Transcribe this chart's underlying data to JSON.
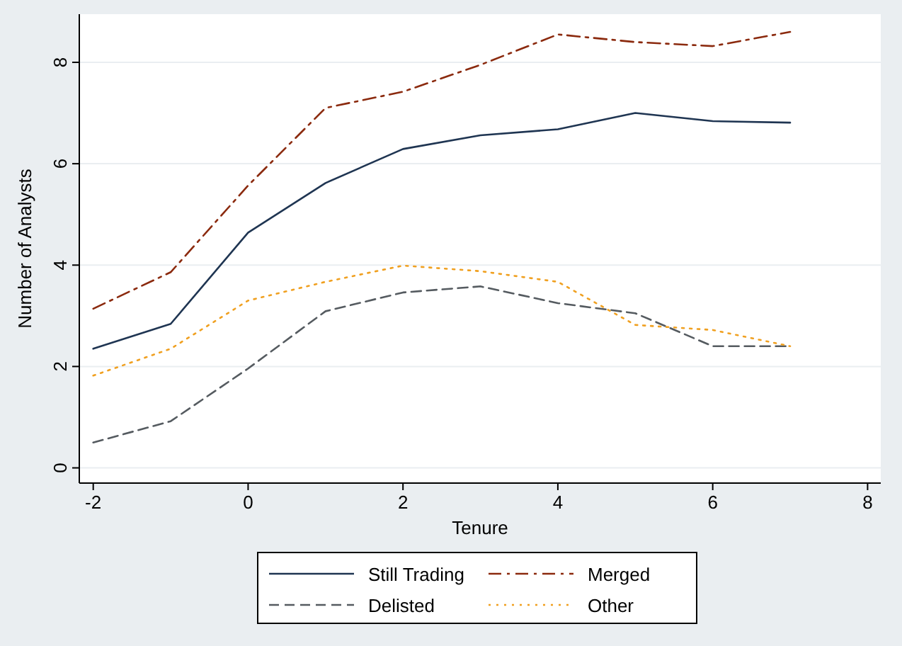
{
  "chart_data": {
    "type": "line",
    "xlabel": "Tenure",
    "ylabel": "Number of Analysts",
    "x": [
      -2,
      -1,
      0,
      1,
      2,
      3,
      4,
      5,
      6,
      7
    ],
    "series": [
      {
        "name": "Still Trading",
        "color": "#1f3552",
        "line_style": "solid",
        "values": [
          2.35,
          2.84,
          4.64,
          5.62,
          6.29,
          6.56,
          6.68,
          7.0,
          6.84,
          6.81
        ]
      },
      {
        "name": "Merged",
        "color": "#8b2a0e",
        "line_style": "dashdot",
        "values": [
          3.14,
          3.86,
          5.57,
          7.1,
          7.42,
          7.95,
          8.55,
          8.4,
          8.32,
          8.6
        ]
      },
      {
        "name": "Delisted",
        "color": "#555b60",
        "line_style": "dashed",
        "values": [
          0.5,
          0.92,
          1.96,
          3.09,
          3.46,
          3.58,
          3.25,
          3.05,
          2.4,
          2.4
        ]
      },
      {
        "name": "Other",
        "color": "#f0a020",
        "line_style": "dotted",
        "values": [
          1.82,
          2.35,
          3.3,
          3.67,
          3.99,
          3.88,
          3.67,
          2.82,
          2.72,
          2.4
        ]
      }
    ],
    "xlim": [
      -2.18,
      8.17
    ],
    "ylim": [
      -0.3,
      8.95
    ],
    "xticks": [
      -2,
      0,
      2,
      4,
      6,
      8
    ],
    "yticks": [
      0,
      2,
      4,
      6,
      8
    ],
    "grid": "y",
    "legend": "bottom"
  }
}
